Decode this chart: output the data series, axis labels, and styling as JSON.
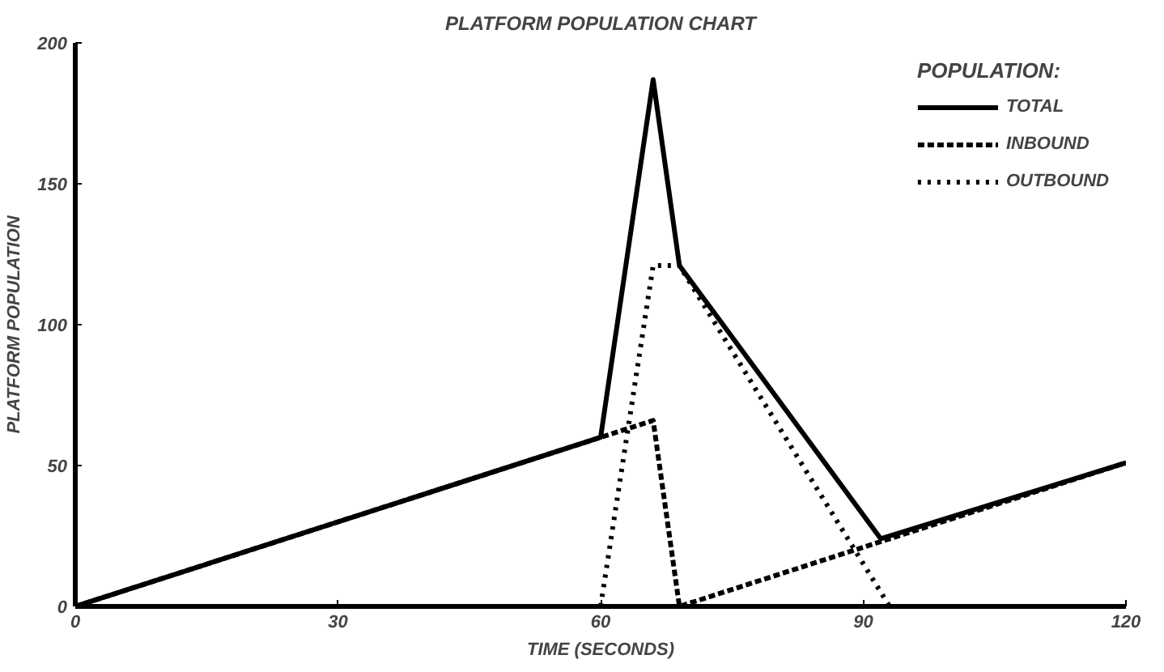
{
  "chart_data": {
    "type": "line",
    "title": "PLATFORM POPULATION CHART",
    "xlabel": "TIME (SECONDS)",
    "ylabel": "PLATFORM POPULATION",
    "legend_title": "POPULATION:",
    "series": [
      {
        "name": "TOTAL",
        "color": "#000000",
        "line_style": "solid",
        "x": [
          0,
          60,
          66,
          69,
          92,
          120
        ],
        "values": [
          0,
          60,
          187,
          121,
          24,
          51
        ]
      },
      {
        "name": "INBOUND",
        "color": "#000000",
        "line_style": "dashed",
        "x": [
          0,
          66,
          69,
          120
        ],
        "values": [
          0,
          66,
          0,
          51
        ]
      },
      {
        "name": "OUTBOUND",
        "color": "#000000",
        "line_style": "dotted",
        "x": [
          60,
          66,
          69,
          93
        ],
        "values": [
          0,
          121,
          121,
          0
        ]
      }
    ],
    "xlim": [
      0,
      120
    ],
    "ylim": [
      0,
      200
    ],
    "xticks": [
      0,
      30,
      60,
      90,
      120
    ],
    "yticks": [
      0,
      50,
      100,
      150,
      200
    ],
    "grid": false,
    "legend": "top right",
    "marker": "none"
  }
}
